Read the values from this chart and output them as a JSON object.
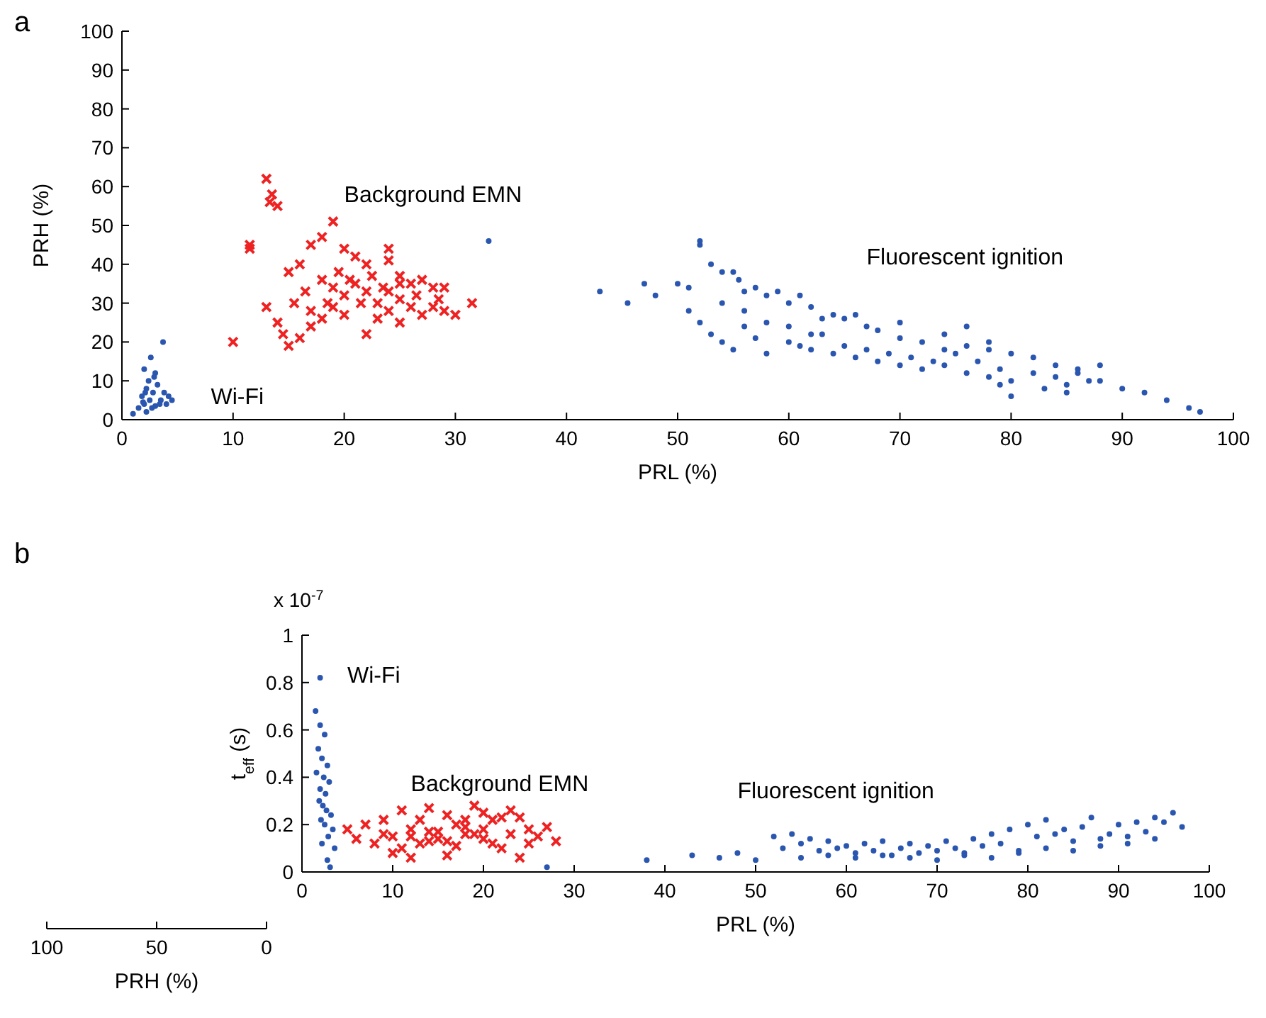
{
  "chart_data": [
    {
      "type": "scatter",
      "title": "a",
      "xlabel": "PRL (%)",
      "ylabel": "PRH (%)",
      "xlim": [
        0,
        100
      ],
      "ylim": [
        0,
        100
      ],
      "xticks": [
        0,
        10,
        20,
        30,
        40,
        50,
        60,
        70,
        80,
        90,
        100
      ],
      "yticks": [
        0,
        10,
        20,
        30,
        40,
        50,
        60,
        70,
        80,
        90,
        100
      ],
      "series": [
        {
          "name": "Wi-Fi",
          "color": "#2a56b0",
          "marker": "circle",
          "x": [
            1.5,
            2,
            2.5,
            3,
            1.8,
            2.2,
            2.8,
            3.5,
            4,
            2.4,
            2,
            2.6,
            3,
            1,
            2.2,
            3.2,
            3.8,
            4.2,
            3.7,
            2.9,
            1.9,
            2.7,
            3.4,
            2.1,
            4.5
          ],
          "values": [
            3,
            4,
            5,
            3.5,
            6,
            8,
            7,
            5,
            4,
            10,
            13,
            16,
            12,
            1.5,
            2,
            9,
            7,
            6,
            20,
            11,
            4.5,
            3,
            4,
            7,
            5
          ]
        },
        {
          "name": "Background EMN",
          "color": "#ee2222",
          "marker": "cross",
          "x": [
            13,
            13.5,
            13.3,
            14,
            11.5,
            11.5,
            10,
            13,
            14,
            14.5,
            15,
            16,
            17,
            18,
            19,
            20,
            21,
            22,
            23,
            24,
            25,
            26,
            27,
            28,
            29,
            30,
            31.5,
            22,
            23,
            25,
            16,
            17,
            18,
            19,
            20,
            21,
            22,
            24,
            24,
            25,
            26,
            27,
            28,
            15,
            16.5,
            18,
            19.5,
            20.5,
            21.5,
            23.5,
            17,
            18.5,
            15.5,
            20,
            26.5,
            28.5,
            22.5,
            19,
            24,
            25,
            29
          ],
          "values": [
            62,
            58,
            56,
            55,
            44,
            45,
            20,
            29,
            25,
            22,
            19,
            21,
            24,
            26,
            29,
            32,
            35,
            33,
            30,
            28,
            31,
            29,
            27,
            29,
            28,
            27,
            30,
            22,
            26,
            25,
            40,
            45,
            47,
            51,
            44,
            42,
            40,
            41,
            44,
            37,
            35,
            36,
            34,
            38,
            33,
            36,
            38,
            36,
            30,
            34,
            28,
            30,
            30,
            27,
            32,
            31,
            37,
            34,
            33,
            35,
            34
          ]
        },
        {
          "name": "Fluorescent ignition",
          "color": "#2a56b0",
          "marker": "circle",
          "x": [
            33,
            43,
            45.5,
            47,
            48,
            50,
            51,
            52,
            52,
            53,
            54,
            55,
            55.5,
            56,
            57,
            58,
            59,
            60,
            61,
            62,
            63,
            64,
            65,
            67,
            68,
            70,
            72,
            74,
            76,
            78,
            80,
            82,
            84,
            86,
            88,
            90,
            92,
            94,
            96,
            97,
            51,
            52,
            53,
            54,
            55,
            56,
            57,
            58,
            60,
            61,
            62,
            63,
            64,
            65,
            66,
            67,
            68,
            69,
            70,
            71,
            72,
            73,
            74,
            75,
            76,
            77,
            78,
            79,
            80,
            80,
            79,
            82,
            83,
            84,
            85,
            86,
            87,
            85,
            54,
            56,
            58,
            60,
            62,
            66,
            70,
            74,
            76,
            78,
            88
          ],
          "values": [
            46,
            33,
            30,
            35,
            32,
            35,
            34,
            45,
            46,
            40,
            38,
            38,
            36,
            33,
            34,
            32,
            33,
            30,
            32,
            29,
            26,
            27,
            26,
            24,
            23,
            21,
            20,
            18,
            19,
            18,
            17,
            16,
            14,
            12,
            10,
            8,
            7,
            5,
            3,
            2,
            28,
            25,
            22,
            20,
            18,
            24,
            21,
            17,
            20,
            19,
            18,
            22,
            17,
            19,
            16,
            18,
            15,
            17,
            14,
            16,
            13,
            15,
            14,
            17,
            12,
            15,
            11,
            13,
            10,
            6,
            9,
            12,
            8,
            11,
            9,
            13,
            10,
            7,
            30,
            28,
            25,
            24,
            22,
            27,
            25,
            22,
            24,
            20,
            14
          ]
        }
      ]
    },
    {
      "type": "scatter",
      "title": "b",
      "xlabel": "PRL (%)",
      "ylabel": "t$_{eff}$ (s)",
      "x2label": "PRH (%)",
      "xlim": [
        0,
        100
      ],
      "ylim": [
        0,
        1
      ],
      "x2lim": [
        100,
        0
      ],
      "xticks": [
        0,
        10,
        20,
        30,
        40,
        50,
        60,
        70,
        80,
        90,
        100
      ],
      "yticks": [
        0,
        0.2,
        0.4,
        0.6,
        0.8,
        1
      ],
      "x2ticks": [
        100,
        50,
        0
      ],
      "annotations": [
        "x 10$^{-7}$"
      ],
      "series": [
        {
          "name": "Wi-Fi",
          "color": "#2a56b0",
          "marker": "circle",
          "x": [
            2,
            1.5,
            2,
            2.5,
            1.8,
            2.2,
            2.8,
            1.6,
            2.4,
            3,
            2,
            2.6,
            1.9,
            2.3,
            2.7,
            3.2,
            2.1,
            2.5,
            3.4,
            2.9,
            2.2,
            3.6,
            2.8,
            3.1
          ],
          "values": [
            0.82,
            0.68,
            0.62,
            0.58,
            0.52,
            0.48,
            0.45,
            0.42,
            0.4,
            0.38,
            0.35,
            0.33,
            0.3,
            0.28,
            0.26,
            0.24,
            0.22,
            0.2,
            0.18,
            0.15,
            0.12,
            0.1,
            0.05,
            0.02
          ]
        },
        {
          "name": "Background EMN",
          "color": "#ee2222",
          "marker": "cross",
          "x": [
            5,
            6,
            7,
            8,
            9,
            10,
            11,
            12,
            13,
            14,
            15,
            16,
            17,
            18,
            19,
            20,
            21,
            22,
            23,
            24,
            25,
            26,
            27,
            28,
            9,
            11,
            13,
            15,
            17,
            19,
            21,
            23,
            25,
            10,
            12,
            14,
            16,
            18,
            20,
            22,
            24,
            12,
            14,
            16,
            18,
            20
          ],
          "values": [
            0.18,
            0.14,
            0.2,
            0.12,
            0.16,
            0.15,
            0.1,
            0.18,
            0.22,
            0.13,
            0.17,
            0.24,
            0.11,
            0.19,
            0.28,
            0.14,
            0.22,
            0.1,
            0.16,
            0.23,
            0.12,
            0.15,
            0.19,
            0.13,
            0.22,
            0.26,
            0.12,
            0.14,
            0.2,
            0.16,
            0.12,
            0.26,
            0.18,
            0.08,
            0.06,
            0.27,
            0.07,
            0.22,
            0.25,
            0.23,
            0.06,
            0.15,
            0.17,
            0.13,
            0.16,
            0.18
          ]
        },
        {
          "name": "Fluorescent ignition",
          "color": "#2a56b0",
          "marker": "circle",
          "x": [
            27,
            38,
            43,
            46,
            48,
            50,
            52,
            53,
            54,
            55,
            56,
            57,
            58,
            59,
            60,
            61,
            62,
            63,
            64,
            65,
            66,
            67,
            68,
            69,
            70,
            71,
            72,
            73,
            74,
            75,
            76,
            77,
            78,
            79,
            80,
            81,
            82,
            83,
            84,
            85,
            86,
            87,
            88,
            89,
            90,
            91,
            92,
            93,
            94,
            95,
            96,
            97,
            55,
            58,
            61,
            64,
            67,
            70,
            73,
            76,
            79,
            82,
            85,
            88,
            91,
            94
          ],
          "values": [
            0.02,
            0.05,
            0.07,
            0.06,
            0.08,
            0.05,
            0.15,
            0.1,
            0.16,
            0.12,
            0.14,
            0.09,
            0.13,
            0.1,
            0.11,
            0.08,
            0.12,
            0.09,
            0.13,
            0.07,
            0.1,
            0.12,
            0.08,
            0.11,
            0.09,
            0.13,
            0.1,
            0.08,
            0.14,
            0.11,
            0.16,
            0.12,
            0.18,
            0.09,
            0.2,
            0.15,
            0.22,
            0.16,
            0.18,
            0.13,
            0.19,
            0.23,
            0.14,
            0.16,
            0.2,
            0.15,
            0.21,
            0.17,
            0.23,
            0.21,
            0.25,
            0.19,
            0.06,
            0.07,
            0.06,
            0.07,
            0.06,
            0.05,
            0.07,
            0.06,
            0.08,
            0.1,
            0.09,
            0.11,
            0.12,
            0.14
          ]
        }
      ]
    }
  ]
}
